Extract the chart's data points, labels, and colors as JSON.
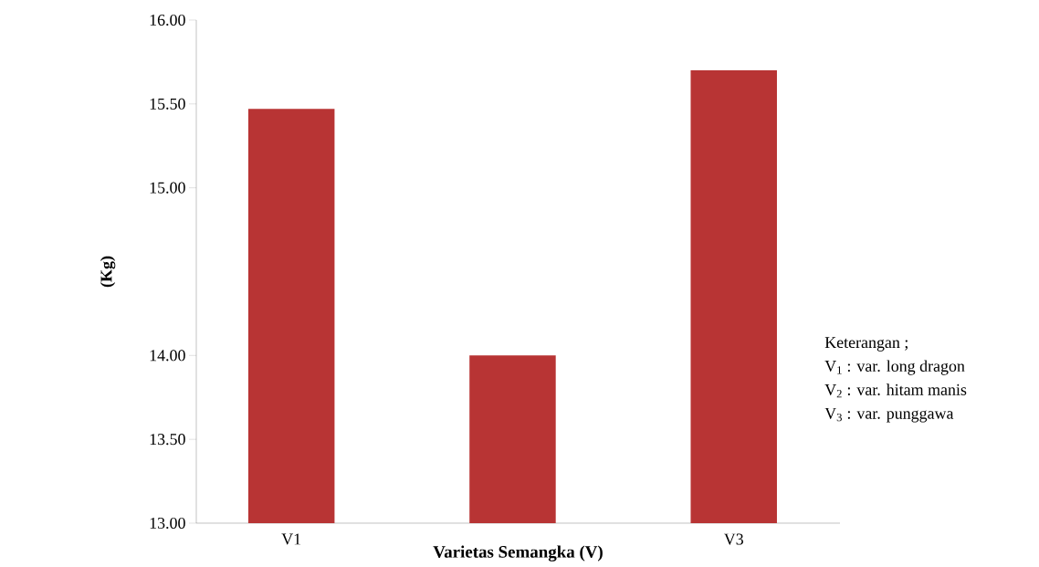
{
  "chart_data": {
    "type": "bar",
    "xlabel": "Varietas Semangka (V)",
    "ylabel": "(Kg)",
    "categories": [
      "V1",
      null,
      "V3"
    ],
    "values": [
      15.47,
      14.0,
      15.7
    ],
    "color": "#b83434",
    "ylim": [
      13,
      16
    ],
    "yticks": [
      {
        "value": 13,
        "label": "13.00"
      },
      {
        "value": 13.5,
        "label": "13.50"
      },
      {
        "value": 14,
        "label": "14.00"
      },
      {
        "value": 15,
        "label": "15.00"
      },
      {
        "value": 15.5,
        "label": "15.50"
      },
      {
        "value": 16,
        "label": "16.00"
      }
    ],
    "grid": false,
    "annotations": [
      "Keterangan ;",
      "V$_{1}$ : var. long dragon",
      "V$_{2}$ : var. hitam manis",
      "V$_{3}$ : var. punggawa"
    ]
  }
}
